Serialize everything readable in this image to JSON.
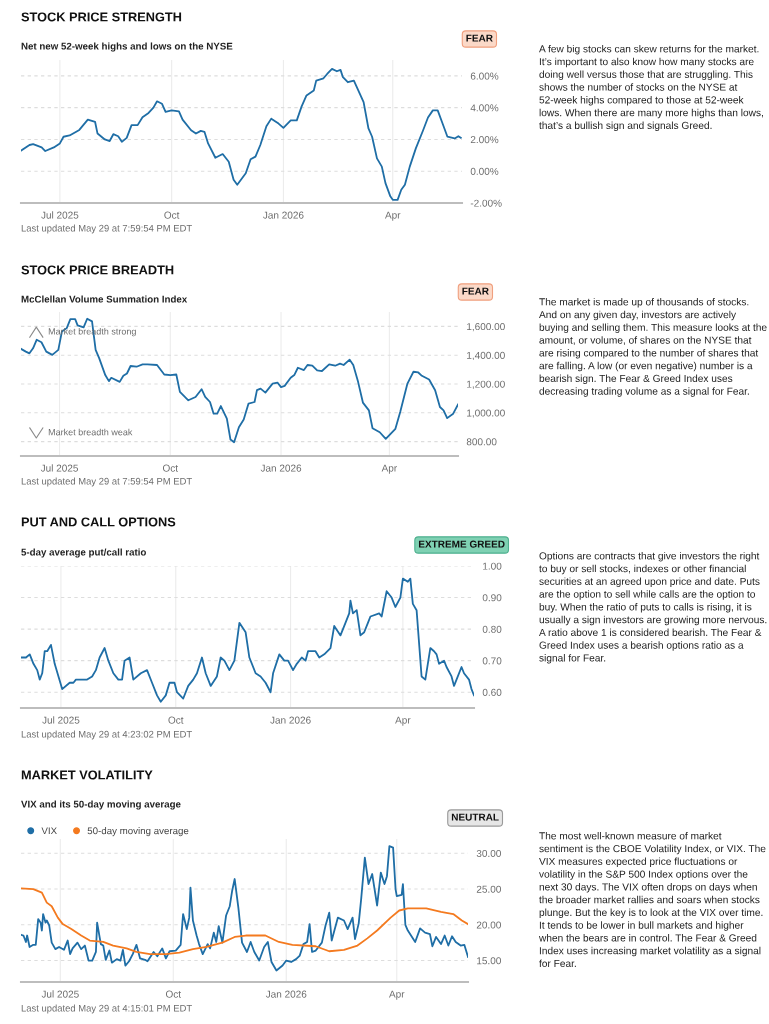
{
  "chart_data": [
    {
      "type": "line",
      "title": "STOCK PRICE STRENGTH",
      "subtitle": "Net new 52-week highs and lows on the NYSE",
      "annotations": [
        "FEAR",
        "Last updated May 29 at 7:59:54 PM EDT",
        "A few big stocks can skew returns for the market. It’s important to also know how many stocks are doing well versus those that are struggling. This shows the number of stocks on the NYSE at 52-week highs compared to those at 52-week lows. When there are many more highs than lows, that’s a bullish sign and signals Greed."
      ],
      "xlim": [
        "2025-05-30",
        "2026-05-28"
      ],
      "xticks": [
        {
          "value": "2025-07-01",
          "label": "Jul 2025"
        },
        {
          "value": "2025-10-01",
          "label": "Oct"
        },
        {
          "value": "2026-01-01",
          "label": "Jan 2026"
        },
        {
          "value": "2026-04-01",
          "label": "Apr"
        }
      ],
      "ylim": [
        -2,
        7
      ],
      "yticks": [
        {
          "value": -2,
          "label": "-2.00%"
        },
        {
          "value": 0,
          "label": "0.00%"
        },
        {
          "value": 2,
          "label": "2.00%"
        },
        {
          "value": 4,
          "label": "4.00%"
        },
        {
          "value": 6,
          "label": "6.00%"
        }
      ],
      "grid": true,
      "series": [
        {
          "color": "#1f6ea6",
          "x": [
            "2025-05-30",
            "2025-06-06",
            "2025-06-09",
            "2025-06-16",
            "2025-06-19",
            "2025-06-26",
            "2025-07-01",
            "2025-07-04",
            "2025-07-09",
            "2025-07-17",
            "2025-07-24",
            "2025-07-30",
            "2025-08-01",
            "2025-08-07",
            "2025-08-11",
            "2025-08-14",
            "2025-08-18",
            "2025-08-21",
            "2025-08-25",
            "2025-08-29",
            "2025-09-03",
            "2025-09-07",
            "2025-09-12",
            "2025-09-16",
            "2025-09-19",
            "2025-09-23",
            "2025-09-26",
            "2025-10-01",
            "2025-10-07",
            "2025-10-10",
            "2025-10-17",
            "2025-10-21",
            "2025-10-25",
            "2025-10-28",
            "2025-10-31",
            "2025-11-06",
            "2025-11-12",
            "2025-11-17",
            "2025-11-21",
            "2025-11-24",
            "2025-12-01",
            "2025-12-05",
            "2025-12-09",
            "2025-12-13",
            "2025-12-18",
            "2025-12-22",
            "2025-12-28",
            "2026-01-01",
            "2026-01-07",
            "2026-01-12",
            "2026-01-16",
            "2026-01-20",
            "2026-01-26",
            "2026-01-28",
            "2026-02-03",
            "2026-02-06",
            "2026-02-10",
            "2026-02-14",
            "2026-02-17",
            "2026-02-19",
            "2026-02-23",
            "2026-02-28",
            "2026-03-08",
            "2026-03-12",
            "2026-03-15",
            "2026-03-19",
            "2026-03-23",
            "2026-03-26",
            "2026-03-30",
            "2026-04-01",
            "2026-04-05",
            "2026-04-08",
            "2026-04-11",
            "2026-04-15",
            "2026-04-20",
            "2026-04-26",
            "2026-04-30",
            "2026-05-04",
            "2026-05-08",
            "2026-05-12",
            "2026-05-16",
            "2026-05-22",
            "2026-05-25",
            "2026-05-27"
          ],
          "values": [
            1.3,
            1.65,
            1.7,
            1.5,
            1.27,
            1.5,
            1.75,
            2.17,
            2.25,
            2.6,
            3.25,
            3.1,
            2.37,
            2.0,
            1.9,
            2.33,
            2.2,
            1.85,
            2.1,
            2.9,
            2.9,
            3.4,
            3.67,
            4.0,
            4.4,
            4.25,
            3.73,
            3.83,
            3.77,
            3.25,
            2.58,
            2.37,
            2.54,
            2.48,
            1.75,
            0.85,
            1.08,
            0.6,
            -0.54,
            -0.85,
            -0.13,
            0.75,
            0.92,
            1.65,
            2.83,
            3.31,
            3.0,
            2.73,
            3.2,
            3.2,
            4.08,
            4.77,
            5.08,
            5.7,
            5.85,
            6.12,
            6.44,
            6.29,
            6.38,
            5.92,
            5.6,
            5.7,
            4.35,
            2.69,
            2.17,
            0.81,
            0.29,
            -0.75,
            -1.58,
            -1.8,
            -1.8,
            -1.17,
            -0.85,
            0.29,
            1.44,
            2.58,
            3.38,
            3.83,
            3.83,
            3.0,
            2.17,
            2.06,
            2.2,
            2.1
          ]
        }
      ]
    },
    {
      "type": "line",
      "title": "STOCK PRICE BREADTH",
      "subtitle": "McClellan Volume Summation Index",
      "annotations": [
        "FEAR",
        "Last updated May 29 at 7:59:54 PM EDT",
        "The market is made up of thousands of stocks. And on any given day, investors are actively buying and selling them. This measure looks at the amount, or volume, of shares on the NYSE that are rising compared to the number of shares that are falling. A low (or even negative) number is a bearish sign. The Fear & Greed Index uses decreasing trading volume as a signal for Fear.",
        "Market breadth strong",
        "Market breadth weak"
      ],
      "xlim": [
        "2025-05-30",
        "2026-05-28"
      ],
      "xticks": [
        {
          "value": "2025-07-01",
          "label": "Jul 2025"
        },
        {
          "value": "2025-10-01",
          "label": "Oct"
        },
        {
          "value": "2026-01-01",
          "label": "Jan 2026"
        },
        {
          "value": "2026-04-01",
          "label": "Apr"
        }
      ],
      "ylim": [
        700,
        1700
      ],
      "yticks": [
        {
          "value": 800,
          "label": "800.00"
        },
        {
          "value": 1000,
          "label": "1,000.00"
        },
        {
          "value": 1200,
          "label": "1,200.00"
        },
        {
          "value": 1400,
          "label": "1,400.00"
        },
        {
          "value": 1600,
          "label": "1,600.00"
        }
      ],
      "grid": true,
      "series": [
        {
          "color": "#1f6ea6",
          "x": [
            "2025-05-30",
            "2025-06-03",
            "2025-06-06",
            "2025-06-09",
            "2025-06-12",
            "2025-06-16",
            "2025-06-20",
            "2025-06-25",
            "2025-06-30",
            "2025-07-03",
            "2025-07-07",
            "2025-07-10",
            "2025-07-14",
            "2025-07-16",
            "2025-07-21",
            "2025-07-24",
            "2025-07-28",
            "2025-07-31",
            "2025-08-03",
            "2025-08-08",
            "2025-08-11",
            "2025-08-13",
            "2025-08-20",
            "2025-08-23",
            "2025-08-26",
            "2025-08-29",
            "2025-09-03",
            "2025-09-08",
            "2025-09-12",
            "2025-09-20",
            "2025-09-26",
            "2025-10-01",
            "2025-10-06",
            "2025-10-09",
            "2025-10-16",
            "2025-10-22",
            "2025-10-27",
            "2025-10-30",
            "2025-11-03",
            "2025-11-06",
            "2025-11-09",
            "2025-11-12",
            "2025-11-17",
            "2025-11-20",
            "2025-11-23",
            "2025-11-27",
            "2025-12-01",
            "2025-12-05",
            "2025-12-10",
            "2025-12-12",
            "2025-12-15",
            "2025-12-19",
            "2025-12-25",
            "2025-12-29",
            "2026-01-01",
            "2026-01-04",
            "2026-01-09",
            "2026-01-12",
            "2026-01-15",
            "2026-01-20",
            "2026-01-23",
            "2026-01-27",
            "2026-01-31",
            "2026-02-04",
            "2026-02-10",
            "2026-02-15",
            "2026-02-19",
            "2026-02-22",
            "2026-02-27",
            "2026-03-02",
            "2026-03-06",
            "2026-03-10",
            "2026-03-15",
            "2026-03-18",
            "2026-03-24",
            "2026-03-29",
            "2026-04-02",
            "2026-04-06",
            "2026-04-10",
            "2026-04-16",
            "2026-04-21",
            "2026-04-25",
            "2026-04-28",
            "2026-05-04",
            "2026-05-09",
            "2026-05-13",
            "2026-05-16",
            "2026-05-19",
            "2026-05-24",
            "2026-05-28"
          ],
          "values": [
            1444,
            1425,
            1413,
            1448,
            1507,
            1490,
            1425,
            1402,
            1437,
            1565,
            1588,
            1651,
            1651,
            1607,
            1593,
            1653,
            1635,
            1437,
            1378,
            1262,
            1220,
            1243,
            1215,
            1257,
            1273,
            1325,
            1320,
            1336,
            1336,
            1332,
            1266,
            1262,
            1266,
            1145,
            1087,
            1110,
            1164,
            1110,
            1075,
            994,
            994,
            1047,
            959,
            814,
            795,
            900,
            954,
            1064,
            1075,
            1157,
            1168,
            1140,
            1203,
            1210,
            1178,
            1187,
            1243,
            1262,
            1313,
            1297,
            1332,
            1327,
            1294,
            1290,
            1336,
            1327,
            1341,
            1332,
            1369,
            1332,
            1215,
            1071,
            1017,
            893,
            865,
            819,
            854,
            889,
            1005,
            1203,
            1285,
            1280,
            1257,
            1231,
            1157,
            1040,
            1017,
            963,
            994,
            1057
          ]
        }
      ]
    },
    {
      "type": "line",
      "title": "PUT AND CALL OPTIONS",
      "subtitle": "5-day average put/call ratio",
      "annotations": [
        "EXTREME GREED",
        "Last updated May 29 at 4:23:02 PM EDT",
        "Options are contracts that give investors the right to buy or sell stocks, indexes or other financial securities at an agreed upon price and date. Puts are the option to sell while calls are the option to buy. When the ratio of puts to calls is rising, it is usually a sign investors are growing more nervous. A ratio above 1 is considered bearish. The Fear & Greed Index uses a bearish options ratio as a signal for Fear."
      ],
      "xlim": [
        "2025-05-30",
        "2026-05-28"
      ],
      "xticks": [
        {
          "value": "2025-07-01",
          "label": "Jul 2025"
        },
        {
          "value": "2025-10-01",
          "label": "Oct"
        },
        {
          "value": "2026-01-01",
          "label": "Jan 2026"
        },
        {
          "value": "2026-04-01",
          "label": "Apr"
        }
      ],
      "ylim": [
        0.55,
        1.0
      ],
      "yticks": [
        {
          "value": 0.6,
          "label": "0.60"
        },
        {
          "value": 0.7,
          "label": "0.70"
        },
        {
          "value": 0.8,
          "label": "0.80"
        },
        {
          "value": 0.9,
          "label": "0.90"
        },
        {
          "value": 1.0,
          "label": "1.00"
        }
      ],
      "grid": true,
      "series": [
        {
          "color": "#1f6ea6",
          "x": [
            "2025-05-30",
            "2025-06-03",
            "2025-06-06",
            "2025-06-09",
            "2025-06-12",
            "2025-06-14",
            "2025-06-16",
            "2025-06-18",
            "2025-06-20",
            "2025-06-23",
            "2025-06-26",
            "2025-07-02",
            "2025-07-08",
            "2025-07-11",
            "2025-07-13",
            "2025-07-17",
            "2025-07-22",
            "2025-07-26",
            "2025-07-29",
            "2025-08-01",
            "2025-08-05",
            "2025-08-08",
            "2025-08-12",
            "2025-08-16",
            "2025-08-19",
            "2025-08-21",
            "2025-08-25",
            "2025-08-28",
            "2025-09-03",
            "2025-09-08",
            "2025-09-12",
            "2025-09-16",
            "2025-09-19",
            "2025-09-23",
            "2025-09-26",
            "2025-09-30",
            "2025-10-02",
            "2025-10-07",
            "2025-10-11",
            "2025-10-15",
            "2025-10-18",
            "2025-10-22",
            "2025-10-25",
            "2025-10-29",
            "2025-11-03",
            "2025-11-06",
            "2025-11-09",
            "2025-11-13",
            "2025-11-17",
            "2025-11-21",
            "2025-11-26",
            "2025-11-29",
            "2025-12-04",
            "2025-12-08",
            "2025-12-12",
            "2025-12-16",
            "2025-12-18",
            "2025-12-23",
            "2025-12-27",
            "2025-12-30",
            "2026-01-03",
            "2026-01-06",
            "2026-01-10",
            "2026-01-13",
            "2026-01-15",
            "2026-01-21",
            "2026-01-24",
            "2026-01-28",
            "2026-02-02",
            "2026-02-05",
            "2026-02-10",
            "2026-02-14",
            "2026-02-17",
            "2026-02-18",
            "2026-02-20",
            "2026-02-23",
            "2026-02-26",
            "2026-03-01",
            "2026-03-04",
            "2026-03-06",
            "2026-03-13",
            "2026-03-15",
            "2026-03-19",
            "2026-03-23",
            "2026-03-26",
            "2026-03-30",
            "2026-04-01",
            "2026-04-05",
            "2026-04-07",
            "2026-04-09",
            "2026-04-12",
            "2026-04-16",
            "2026-04-19",
            "2026-04-23",
            "2026-04-26",
            "2026-04-28",
            "2026-04-30",
            "2026-05-04",
            "2026-05-06",
            "2026-05-10",
            "2026-05-12",
            "2026-05-14",
            "2026-05-18",
            "2026-05-20",
            "2026-05-24",
            "2026-05-26",
            "2026-05-28"
          ],
          "values": [
            0.71,
            0.71,
            0.72,
            0.69,
            0.67,
            0.64,
            0.66,
            0.73,
            0.73,
            0.75,
            0.69,
            0.61,
            0.63,
            0.63,
            0.64,
            0.64,
            0.64,
            0.65,
            0.67,
            0.71,
            0.74,
            0.7,
            0.66,
            0.64,
            0.64,
            0.7,
            0.71,
            0.64,
            0.66,
            0.67,
            0.63,
            0.59,
            0.57,
            0.59,
            0.63,
            0.63,
            0.6,
            0.58,
            0.62,
            0.64,
            0.66,
            0.71,
            0.66,
            0.62,
            0.65,
            0.71,
            0.7,
            0.67,
            0.7,
            0.82,
            0.79,
            0.71,
            0.66,
            0.65,
            0.63,
            0.6,
            0.66,
            0.72,
            0.7,
            0.7,
            0.67,
            0.69,
            0.71,
            0.7,
            0.73,
            0.73,
            0.71,
            0.72,
            0.74,
            0.81,
            0.78,
            0.82,
            0.85,
            0.89,
            0.85,
            0.86,
            0.78,
            0.79,
            0.82,
            0.84,
            0.85,
            0.84,
            0.92,
            0.9,
            0.87,
            0.9,
            0.96,
            0.95,
            0.96,
            0.88,
            0.86,
            0.65,
            0.64,
            0.74,
            0.73,
            0.72,
            0.69,
            0.7,
            0.68,
            0.65,
            0.62,
            0.64,
            0.68,
            0.66,
            0.64,
            0.61,
            0.59
          ]
        }
      ]
    },
    {
      "type": "line",
      "title": "MARKET VOLATILITY",
      "subtitle": "VIX and its 50-day moving average",
      "annotations": [
        "NEUTRAL",
        "Last updated May 29 at 4:15:01 PM EDT",
        "The most well-known measure of market sentiment is the CBOE Volatility Index, or VIX. The VIX measures expected price fluctuations or volatility in the S&P 500 Index options over the next 30 days. The VIX often drops on days when the broader market rallies and soars when stocks plunge. But the key is to look at the VIX over time. It tends to be lower in bull markets and higher when the bears are in control. The Fear & Greed Index uses increasing market volatility as a signal for Fear."
      ],
      "xlim": [
        "2025-05-30",
        "2026-05-29"
      ],
      "xticks": [
        {
          "value": "2025-07-01",
          "label": "Jul 2025"
        },
        {
          "value": "2025-10-01",
          "label": "Oct"
        },
        {
          "value": "2026-01-01",
          "label": "Jan 2026"
        },
        {
          "value": "2026-04-01",
          "label": "Apr"
        }
      ],
      "ylim": [
        12,
        32
      ],
      "yticks": [
        {
          "value": 15,
          "label": "15.00"
        },
        {
          "value": 20,
          "label": "20.00"
        },
        {
          "value": 25,
          "label": "25.00"
        },
        {
          "value": 30,
          "label": "30.00"
        }
      ],
      "grid": true,
      "legend": "top left",
      "series": [
        {
          "name": "VIX",
          "color": "#1f6ea6",
          "x": [
            "2025-05-30",
            "2025-06-01",
            "2025-06-03",
            "2025-06-04",
            "2025-06-06",
            "2025-06-09",
            "2025-06-11",
            "2025-06-13",
            "2025-06-15",
            "2025-06-16",
            "2025-06-17",
            "2025-06-19",
            "2025-06-20",
            "2025-06-22",
            "2025-06-24",
            "2025-06-27",
            "2025-06-30",
            "2025-07-04",
            "2025-07-07",
            "2025-07-09",
            "2025-07-11",
            "2025-07-15",
            "2025-07-18",
            "2025-07-21",
            "2025-07-24",
            "2025-07-27",
            "2025-07-30",
            "2025-07-31",
            "2025-08-03",
            "2025-08-05",
            "2025-08-07",
            "2025-08-10",
            "2025-08-12",
            "2025-08-16",
            "2025-08-19",
            "2025-08-21",
            "2025-08-23",
            "2025-08-26",
            "2025-08-29",
            "2025-09-01",
            "2025-09-04",
            "2025-09-08",
            "2025-09-10",
            "2025-09-15",
            "2025-09-18",
            "2025-09-22",
            "2025-09-25",
            "2025-09-28",
            "2025-10-03",
            "2025-10-07",
            "2025-10-09",
            "2025-10-12",
            "2025-10-14",
            "2025-10-15",
            "2025-10-17",
            "2025-10-20",
            "2025-10-22",
            "2025-10-25",
            "2025-10-29",
            "2025-10-31",
            "2025-11-03",
            "2025-11-05",
            "2025-11-07",
            "2025-11-10",
            "2025-11-13",
            "2025-11-16",
            "2025-11-18",
            "2025-11-20",
            "2025-11-23",
            "2025-11-26",
            "2025-11-30",
            "2025-12-03",
            "2025-12-06",
            "2025-12-10",
            "2025-12-14",
            "2025-12-17",
            "2025-12-20",
            "2025-12-24",
            "2025-12-29",
            "2026-01-01",
            "2026-01-05",
            "2026-01-09",
            "2026-01-12",
            "2026-01-15",
            "2026-01-18",
            "2026-01-20",
            "2026-01-22",
            "2026-01-25",
            "2026-01-30",
            "2026-02-02",
            "2026-02-05",
            "2026-02-07",
            "2026-02-12",
            "2026-02-17",
            "2026-02-20",
            "2026-02-24",
            "2026-02-26",
            "2026-03-01",
            "2026-03-03",
            "2026-03-06",
            "2026-03-09",
            "2026-03-12",
            "2026-03-16",
            "2026-03-19",
            "2026-03-22",
            "2026-03-24",
            "2026-03-26",
            "2026-03-29",
            "2026-03-31",
            "2026-04-01",
            "2026-04-05",
            "2026-04-06",
            "2026-04-08",
            "2026-04-10",
            "2026-04-16",
            "2026-04-20",
            "2026-04-24",
            "2026-04-28",
            "2026-04-30",
            "2026-05-03",
            "2026-05-07",
            "2026-05-10",
            "2026-05-13",
            "2026-05-16",
            "2026-05-19",
            "2026-05-23",
            "2026-05-26",
            "2026-05-29"
          ],
          "values": [
            18.6,
            18.5,
            17.6,
            18.5,
            16.9,
            17.2,
            17.2,
            20.8,
            20.3,
            19.2,
            21.5,
            20.3,
            20.6,
            19.9,
            17.5,
            16.6,
            16.9,
            16.5,
            17.8,
            15.9,
            16.7,
            17.5,
            16.6,
            17.1,
            15.0,
            15.0,
            16.2,
            20.3,
            17.3,
            17.1,
            15.1,
            16.4,
            14.7,
            15.2,
            15.0,
            16.5,
            14.3,
            14.9,
            15.9,
            17.2,
            15.3,
            15.1,
            14.9,
            16.2,
            15.6,
            16.7,
            15.3,
            16.3,
            16.4,
            17.2,
            21.5,
            19.4,
            21.0,
            25.2,
            20.6,
            18.5,
            17.3,
            15.9,
            17.3,
            16.7,
            18.9,
            17.6,
            19.8,
            17.5,
            21.3,
            22.6,
            24.8,
            26.4,
            22.4,
            17.5,
            16.2,
            17.6,
            16.2,
            15.0,
            16.9,
            17.6,
            14.8,
            13.6,
            14.3,
            15.0,
            14.8,
            15.2,
            15.7,
            17.3,
            17.6,
            20.1,
            16.2,
            16.4,
            17.5,
            19.9,
            21.7,
            17.8,
            21.0,
            20.6,
            19.4,
            21.0,
            18.0,
            20.2,
            23.6,
            29.4,
            25.7,
            27.1,
            22.7,
            27.3,
            25.7,
            26.8,
            31.0,
            30.8,
            25.0,
            24.0,
            24.2,
            25.7,
            20.0,
            19.2,
            17.6,
            19.5,
            18.9,
            18.7,
            17.0,
            18.3,
            17.3,
            18.5,
            17.1,
            18.4,
            17.6,
            17.1,
            17.2,
            15.5
          ]
        },
        {
          "name": "50-day moving average",
          "color": "#f47a1f",
          "x": [
            "2025-05-30",
            "2025-06-09",
            "2025-06-16",
            "2025-06-20",
            "2025-06-24",
            "2025-06-29",
            "2025-07-03",
            "2025-07-10",
            "2025-07-18",
            "2025-07-25",
            "2025-08-05",
            "2025-08-13",
            "2025-08-24",
            "2025-09-01",
            "2025-09-12",
            "2025-09-25",
            "2025-10-06",
            "2025-10-17",
            "2025-10-28",
            "2025-11-10",
            "2025-11-20",
            "2025-11-29",
            "2025-12-15",
            "2025-12-26",
            "2026-01-06",
            "2026-01-25",
            "2026-02-05",
            "2026-02-17",
            "2026-02-28",
            "2026-03-08",
            "2026-03-16",
            "2026-03-27",
            "2026-04-03",
            "2026-04-10",
            "2026-04-25",
            "2026-05-07",
            "2026-05-17",
            "2026-05-24",
            "2026-05-29"
          ],
          "values": [
            25.1,
            25.0,
            24.5,
            23.1,
            22.6,
            21.0,
            20.1,
            19.4,
            18.5,
            17.8,
            17.6,
            17.1,
            16.7,
            16.2,
            15.9,
            15.9,
            16.1,
            16.6,
            16.9,
            17.5,
            18.3,
            18.5,
            18.5,
            17.6,
            17.2,
            17.0,
            16.3,
            16.5,
            17.1,
            18.1,
            19.2,
            21.0,
            22.0,
            22.3,
            22.3,
            21.8,
            21.5,
            20.6,
            20.1
          ]
        }
      ]
    }
  ]
}
